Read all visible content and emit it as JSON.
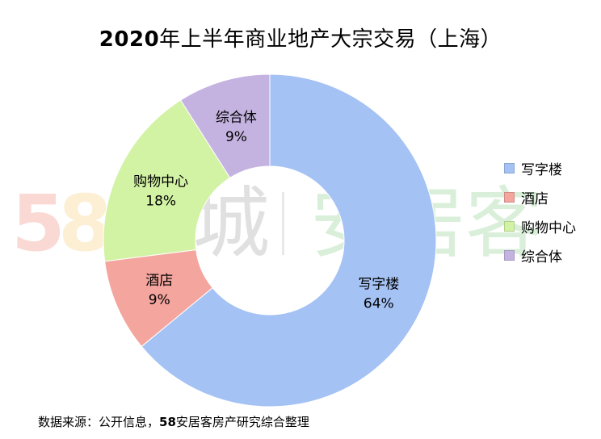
{
  "title_year": "2020",
  "title_rest": "年上半年商业地产大宗交易（上海）",
  "source_prefix": "数据来源：公开信息，",
  "source_bold": "58",
  "source_rest": "安居客房产研究综合整理",
  "watermark": {
    "brand_number": "58",
    "brand_word": "同城",
    "brand_secondary": "安居客",
    "colors": [
      "#e9573f",
      "#f6bb42",
      "#3bafda",
      "#8cc152"
    ]
  },
  "chart_data": {
    "type": "pie",
    "style": "donut",
    "title": "2020年上半年商业地产大宗交易（上海）",
    "legend_position": "right",
    "slices": [
      {
        "label": "写字楼",
        "value": 64,
        "display": "64%",
        "color": "#a4c2f4"
      },
      {
        "label": "酒店",
        "value": 9,
        "display": "9%",
        "color": "#f4a59e"
      },
      {
        "label": "购物中心",
        "value": 18,
        "display": "18%",
        "color": "#d2f2a4"
      },
      {
        "label": "综合体",
        "value": 9,
        "display": "9%",
        "color": "#c4b3e0"
      }
    ]
  }
}
